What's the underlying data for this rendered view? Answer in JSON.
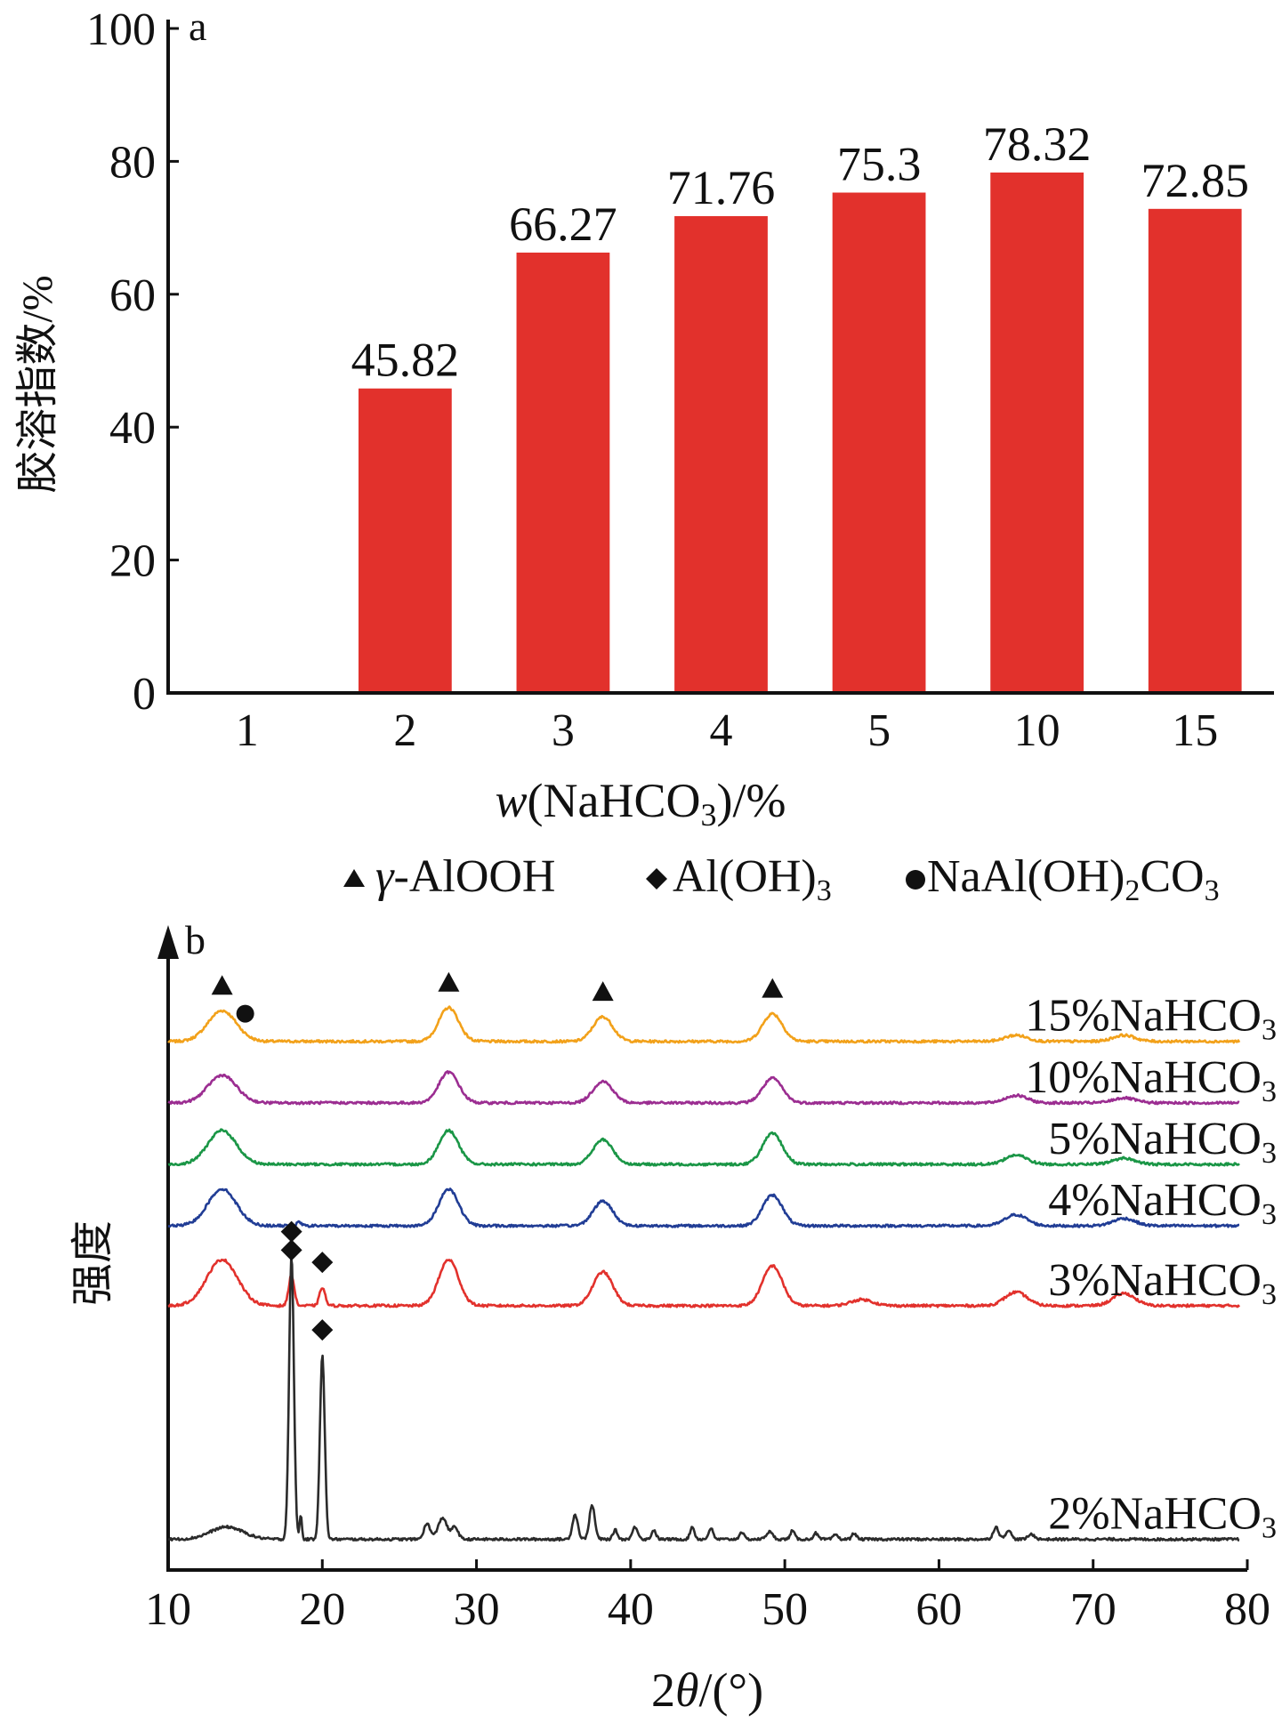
{
  "chart_data": [
    {
      "type": "bar",
      "panel_label": "a",
      "categories": [
        "1",
        "2",
        "3",
        "4",
        "5",
        "10",
        "15"
      ],
      "values": [
        0,
        45.82,
        66.27,
        71.76,
        75.3,
        78.32,
        72.85
      ],
      "data_labels": [
        "",
        "45.82",
        "66.27",
        "71.76",
        "75.3",
        "78.32",
        "72.85"
      ],
      "ylabel": "胶溶指数/%",
      "xlabel_italic": "w",
      "xlabel_main": "(NaHCO",
      "xlabel_sub": "3",
      "xlabel_tail": ")/%",
      "ylim": [
        0,
        100
      ],
      "yticks": [
        "0",
        "20",
        "40",
        "60",
        "80",
        "100"
      ],
      "bar_color": "#e2312c",
      "grid": false
    },
    {
      "type": "line",
      "panel_label": "b",
      "xlabel_main": "2",
      "xlabel_italic": "θ",
      "xlabel_tail": "/(°)",
      "ylabel": "强度",
      "xlim": [
        10,
        80
      ],
      "xticks": [
        "10",
        "20",
        "30",
        "40",
        "50",
        "60",
        "70",
        "80"
      ],
      "grid": false,
      "legend_position": "top",
      "legend": [
        {
          "marker": "triangle",
          "parts": [
            "γ",
            "-AlOOH"
          ]
        },
        {
          "marker": "diamond",
          "parts": [
            "Al(OH)",
            "3"
          ]
        },
        {
          "marker": "circle",
          "parts": [
            "NaAl(OH)",
            "2",
            "CO",
            "3"
          ]
        }
      ],
      "series": [
        {
          "name": "15%NaHCO",
          "sub": "3",
          "color": "#f2a11a",
          "baseline": 0.14,
          "peaks": [
            [
              13.5,
              0.05,
              1.3
            ],
            [
              28.2,
              0.055,
              0.9
            ],
            [
              38.2,
              0.04,
              0.9
            ],
            [
              49.2,
              0.045,
              0.9
            ],
            [
              65,
              0.01,
              1.0
            ],
            [
              72,
              0.01,
              1.0
            ]
          ],
          "markers": [
            {
              "type": "triangle",
              "x": 13.5
            },
            {
              "type": "circle",
              "x": 15.0
            },
            {
              "type": "triangle",
              "x": 28.2
            },
            {
              "type": "triangle",
              "x": 38.2
            },
            {
              "type": "triangle",
              "x": 49.2
            }
          ]
        },
        {
          "name": "10%NaHCO",
          "sub": "3",
          "color": "#9b2d91",
          "baseline": 0.24,
          "peaks": [
            [
              13.5,
              0.045,
              1.3
            ],
            [
              28.2,
              0.05,
              0.9
            ],
            [
              38.2,
              0.035,
              0.9
            ],
            [
              49.2,
              0.04,
              0.9
            ],
            [
              65,
              0.012,
              1.0
            ],
            [
              72,
              0.008,
              1.0
            ]
          ],
          "markers": []
        },
        {
          "name": "5%NaHCO",
          "sub": "3",
          "color": "#1a9646",
          "baseline": 0.34,
          "peaks": [
            [
              13.5,
              0.055,
              1.3
            ],
            [
              28.2,
              0.055,
              0.9
            ],
            [
              38.2,
              0.04,
              0.9
            ],
            [
              49.2,
              0.05,
              0.9
            ],
            [
              65,
              0.015,
              1.0
            ],
            [
              72,
              0.01,
              1.0
            ]
          ],
          "markers": []
        },
        {
          "name": "4%NaHCO",
          "sub": "3",
          "color": "#213d95",
          "baseline": 0.44,
          "peaks": [
            [
              13.5,
              0.06,
              1.3
            ],
            [
              28.2,
              0.06,
              0.9
            ],
            [
              38.2,
              0.04,
              0.9
            ],
            [
              49.2,
              0.05,
              0.9
            ],
            [
              65,
              0.018,
              1.0
            ],
            [
              72,
              0.012,
              1.0
            ],
            [
              18.5,
              0.006,
              0.2
            ]
          ],
          "markers": []
        },
        {
          "name": "3%NaHCO",
          "sub": "3",
          "color": "#e2312c",
          "baseline": 0.57,
          "peaks": [
            [
              13.5,
              0.075,
              1.4
            ],
            [
              18.0,
              0.05,
              0.25
            ],
            [
              20.0,
              0.03,
              0.25
            ],
            [
              28.2,
              0.075,
              0.9
            ],
            [
              38.2,
              0.055,
              0.9
            ],
            [
              49.2,
              0.065,
              0.9
            ],
            [
              65,
              0.022,
              1.0
            ],
            [
              72,
              0.02,
              1.0
            ],
            [
              55,
              0.01,
              1.0
            ]
          ],
          "markers": [
            {
              "type": "diamond",
              "x": 18.0
            },
            {
              "type": "diamond",
              "x": 20.0
            }
          ]
        },
        {
          "name": "2%NaHCO",
          "sub": "3",
          "color": "#2b2b2b",
          "baseline": 0.95,
          "peaks": [
            [
              13.8,
              0.02,
              1.5
            ],
            [
              18.0,
              0.46,
              0.22
            ],
            [
              20.0,
              0.3,
              0.22
            ],
            [
              18.6,
              0.04,
              0.1
            ],
            [
              26.8,
              0.025,
              0.3
            ],
            [
              27.8,
              0.035,
              0.4
            ],
            [
              28.6,
              0.02,
              0.3
            ],
            [
              36.4,
              0.04,
              0.25
            ],
            [
              37.5,
              0.055,
              0.25
            ],
            [
              39.0,
              0.015,
              0.2
            ],
            [
              40.3,
              0.02,
              0.25
            ],
            [
              41.5,
              0.015,
              0.2
            ],
            [
              44.0,
              0.02,
              0.2
            ],
            [
              45.2,
              0.018,
              0.2
            ],
            [
              47.2,
              0.012,
              0.2
            ],
            [
              49.0,
              0.012,
              0.3
            ],
            [
              50.5,
              0.014,
              0.2
            ],
            [
              52.0,
              0.01,
              0.2
            ],
            [
              53.3,
              0.008,
              0.2
            ],
            [
              54.5,
              0.01,
              0.2
            ],
            [
              63.7,
              0.02,
              0.25
            ],
            [
              64.5,
              0.015,
              0.25
            ],
            [
              66.0,
              0.008,
              0.3
            ]
          ],
          "markers": [
            {
              "type": "diamond",
              "x": 18.0
            },
            {
              "type": "diamond",
              "x": 20.0
            }
          ]
        }
      ]
    }
  ]
}
